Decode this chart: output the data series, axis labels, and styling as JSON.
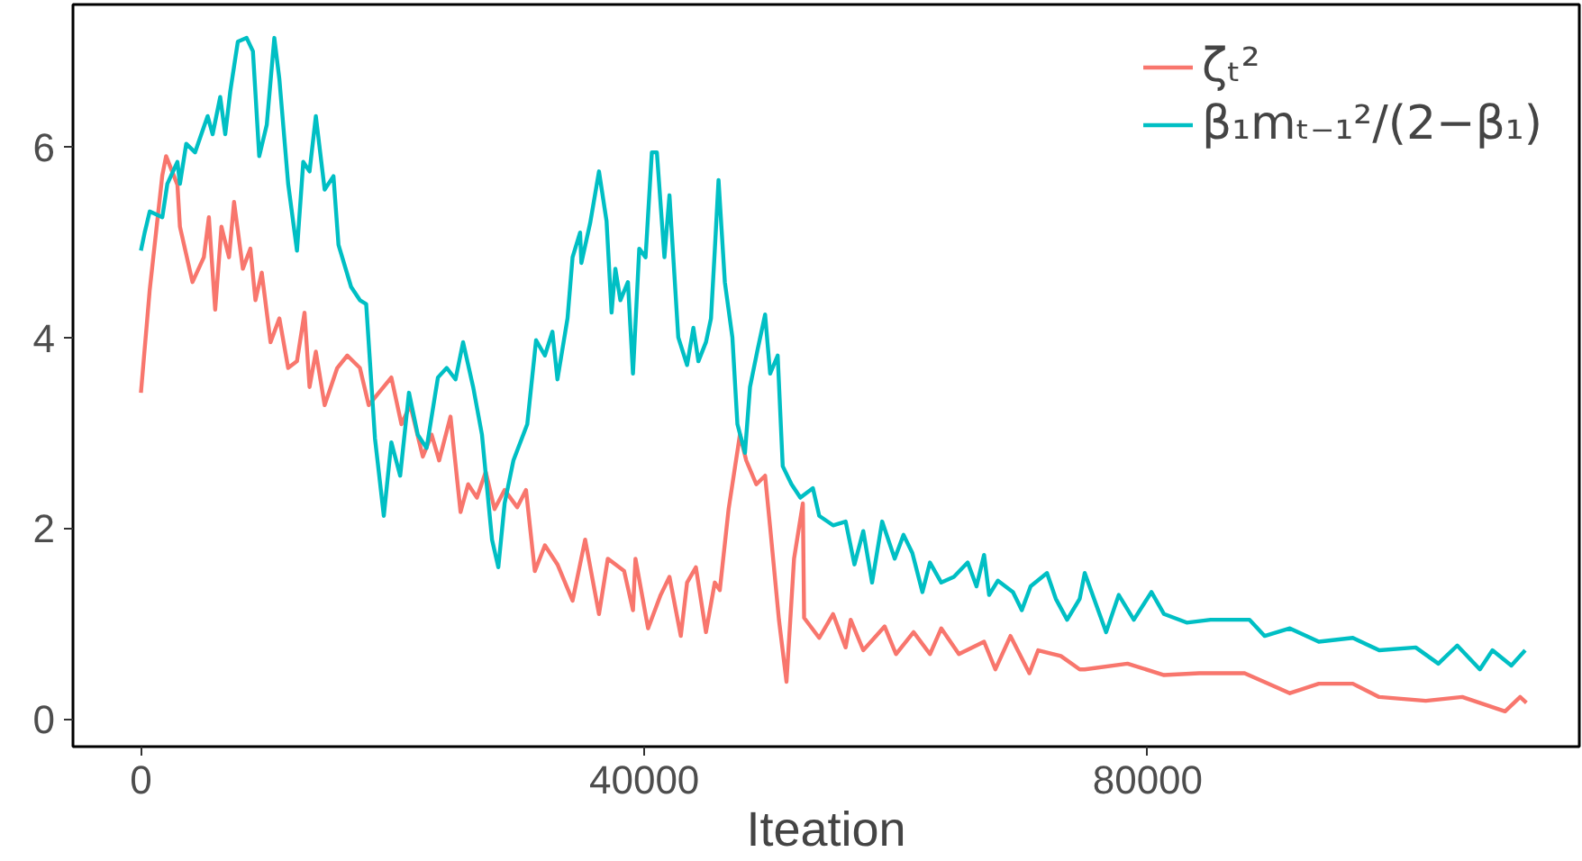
{
  "chart_data": {
    "type": "line",
    "xlabel": "Iteation",
    "xlim": [
      -5400,
      114300
    ],
    "ylim": [
      -0.29,
      7.49
    ],
    "xticks": [
      0,
      40000,
      80000
    ],
    "yticks": [
      0,
      2,
      4,
      6
    ],
    "grid": false,
    "legend": "top right",
    "line_style": "solid",
    "series": [
      {
        "name": "ζₜ²",
        "color": "#f8766d",
        "x": [
          0,
          700,
          1700,
          2000,
          2900,
          3100,
          4100,
          5000,
          5400,
          5900,
          6400,
          7000,
          7400,
          8100,
          8700,
          9100,
          9600,
          10300,
          11000,
          11700,
          12400,
          13000,
          13400,
          13900,
          14600,
          15600,
          16400,
          17400,
          18100,
          18900,
          19900,
          20700,
          21400,
          22400,
          23100,
          23700,
          24600,
          25400,
          26000,
          26700,
          27400,
          28100,
          28900,
          29900,
          30600,
          31300,
          32100,
          33100,
          34300,
          35300,
          36400,
          37100,
          38400,
          39100,
          39300,
          40300,
          41300,
          42000,
          42900,
          43400,
          44100,
          44900,
          45600,
          46000,
          46700,
          47600,
          48100,
          48900,
          49600,
          50000,
          50700,
          51300,
          51900,
          52600,
          52700,
          53900,
          55000,
          56000,
          56400,
          57400,
          59100,
          60000,
          61400,
          62700,
          63600,
          65000,
          67000,
          67900,
          69100,
          70600,
          71300,
          73100,
          74600,
          75000,
          78400,
          81300,
          84100,
          87700,
          91300,
          93600,
          96300,
          98400,
          102100,
          105000,
          108400,
          109600,
          110100
        ],
        "values": [
          3.42,
          4.5,
          5.7,
          5.9,
          5.6,
          5.16,
          4.58,
          4.84,
          5.26,
          4.29,
          5.16,
          4.84,
          5.42,
          4.72,
          4.93,
          4.39,
          4.68,
          3.95,
          4.2,
          3.68,
          3.75,
          4.26,
          3.48,
          3.85,
          3.29,
          3.68,
          3.81,
          3.68,
          3.29,
          3.42,
          3.58,
          3.09,
          3.29,
          2.75,
          2.98,
          2.71,
          3.17,
          2.17,
          2.46,
          2.32,
          2.59,
          2.2,
          2.4,
          2.22,
          2.4,
          1.55,
          1.82,
          1.62,
          1.24,
          1.88,
          1.1,
          1.68,
          1.55,
          1.14,
          1.68,
          0.95,
          1.3,
          1.49,
          0.87,
          1.43,
          1.59,
          0.91,
          1.43,
          1.35,
          2.2,
          2.98,
          2.71,
          2.46,
          2.55,
          2.01,
          1.04,
          0.39,
          1.68,
          2.26,
          1.06,
          0.85,
          1.1,
          0.75,
          1.04,
          0.72,
          0.97,
          0.68,
          0.91,
          0.68,
          0.95,
          0.68,
          0.81,
          0.52,
          0.87,
          0.48,
          0.72,
          0.66,
          0.52,
          0.52,
          0.58,
          0.46,
          0.48,
          0.48,
          0.27,
          0.37,
          0.37,
          0.23,
          0.19,
          0.23,
          0.08,
          0.23,
          0.17
        ]
      },
      {
        "name": "β₁mₜ₋₁²/(2−β₁)",
        "color": "#00bfc4",
        "x": [
          0,
          300,
          700,
          1700,
          2100,
          2900,
          3100,
          3600,
          4300,
          4800,
          5300,
          5700,
          6300,
          6700,
          7100,
          7700,
          8400,
          8900,
          9400,
          10000,
          10600,
          11000,
          11700,
          12400,
          12900,
          13400,
          13900,
          14600,
          15300,
          15700,
          16700,
          17400,
          17900,
          18600,
          19300,
          19900,
          20600,
          21300,
          22000,
          22700,
          23600,
          24300,
          25000,
          25600,
          26400,
          27100,
          27900,
          28400,
          28900,
          29600,
          30700,
          31400,
          32100,
          32700,
          33100,
          33900,
          34300,
          34900,
          35000,
          35700,
          36400,
          37000,
          37400,
          37700,
          38100,
          38700,
          39100,
          39600,
          40100,
          40600,
          41000,
          41600,
          42000,
          42700,
          43400,
          43900,
          44300,
          44900,
          45300,
          45600,
          45900,
          46400,
          47000,
          47400,
          48000,
          48400,
          49000,
          49600,
          50000,
          50600,
          51000,
          51700,
          52400,
          53400,
          53900,
          55000,
          56000,
          56700,
          57400,
          58100,
          58900,
          59900,
          60600,
          61300,
          62100,
          62700,
          63600,
          64600,
          65700,
          66400,
          67000,
          67400,
          68100,
          69300,
          70000,
          70700,
          72000,
          72700,
          73600,
          74600,
          75000,
          76700,
          77700,
          78900,
          80300,
          81300,
          83100,
          85000,
          88100,
          89300,
          91300,
          93600,
          96300,
          98400,
          101300,
          103100,
          104600,
          106400,
          107400,
          108900,
          110000
        ],
        "values": [
          4.91,
          5.1,
          5.32,
          5.26,
          5.61,
          5.84,
          5.61,
          6.03,
          5.94,
          6.13,
          6.32,
          6.13,
          6.52,
          6.13,
          6.58,
          7.1,
          7.14,
          7.0,
          5.9,
          6.23,
          7.14,
          6.71,
          5.61,
          4.91,
          5.84,
          5.74,
          6.32,
          5.55,
          5.69,
          4.97,
          4.53,
          4.39,
          4.35,
          2.94,
          2.13,
          2.9,
          2.55,
          3.42,
          2.98,
          2.84,
          3.58,
          3.68,
          3.56,
          3.95,
          3.48,
          2.98,
          1.88,
          1.59,
          2.26,
          2.71,
          3.09,
          3.97,
          3.81,
          4.06,
          3.56,
          4.2,
          4.84,
          5.1,
          4.78,
          5.2,
          5.74,
          5.22,
          4.26,
          4.72,
          4.39,
          4.58,
          3.62,
          4.93,
          4.84,
          5.94,
          5.94,
          4.84,
          5.49,
          4.0,
          3.71,
          4.1,
          3.75,
          3.95,
          4.2,
          4.91,
          5.65,
          4.58,
          4.0,
          3.09,
          2.79,
          3.48,
          3.87,
          4.24,
          3.62,
          3.81,
          2.65,
          2.46,
          2.32,
          2.42,
          2.13,
          2.03,
          2.07,
          1.62,
          1.97,
          1.43,
          2.07,
          1.68,
          1.93,
          1.74,
          1.33,
          1.64,
          1.43,
          1.49,
          1.64,
          1.39,
          1.72,
          1.3,
          1.45,
          1.33,
          1.14,
          1.39,
          1.53,
          1.26,
          1.04,
          1.26,
          1.53,
          0.91,
          1.3,
          1.04,
          1.33,
          1.1,
          1.01,
          1.04,
          1.04,
          0.87,
          0.95,
          0.81,
          0.85,
          0.72,
          0.75,
          0.58,
          0.77,
          0.52,
          0.72,
          0.56,
          0.72
        ]
      }
    ]
  }
}
